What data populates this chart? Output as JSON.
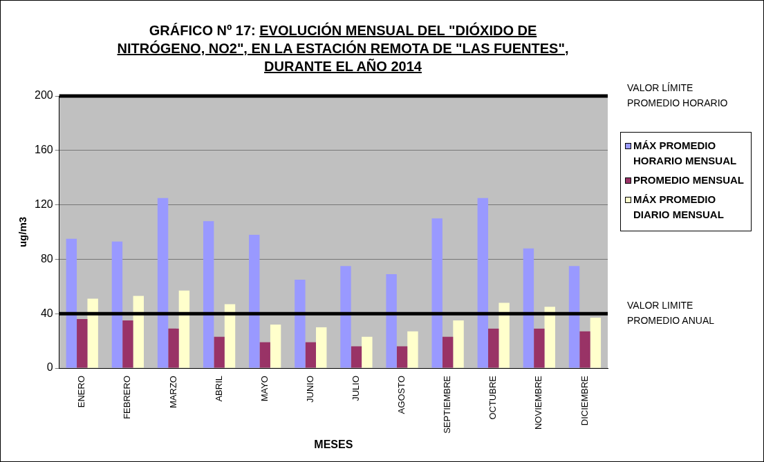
{
  "chart_data": {
    "type": "bar",
    "title": "GRÁFICO Nº 17: EVOLUCIÓN  MENSUAL DEL \"DIÓXIDO DE NITRÓGENO, NO2\", EN LA ESTACIÓN REMOTA DE \"LAS FUENTES\", DURANTE EL AÑO 2014",
    "xlabel": "MESES",
    "ylabel": "ug/m3",
    "categories": [
      "ENERO",
      "FEBRERO",
      "MARZO",
      "ABRIL",
      "MAYO",
      "JUNIO",
      "JULIO",
      "AGOSTO",
      "SEPTIEMBRE",
      "OCTUBRE",
      "NOVIEMBRE",
      "DICIEMBRE"
    ],
    "series": [
      {
        "name": "MÁX PROMEDIO HORARIO MENSUAL",
        "color": "#9999ff",
        "values": [
          95,
          93,
          125,
          108,
          98,
          65,
          75,
          69,
          110,
          125,
          88,
          75
        ]
      },
      {
        "name": "PROMEDIO MENSUAL",
        "color": "#993366",
        "values": [
          36,
          35,
          29,
          23,
          19,
          19,
          16,
          16,
          23,
          29,
          29,
          27
        ]
      },
      {
        "name": "MÁX PROMEDIO DIARIO MENSUAL",
        "color": "#ffffcc",
        "values": [
          51,
          53,
          57,
          47,
          32,
          30,
          23,
          27,
          35,
          48,
          45,
          37
        ]
      }
    ],
    "ylim": [
      0,
      200
    ],
    "yticks": [
      0,
      40,
      80,
      120,
      160,
      200
    ],
    "grid": "y",
    "legend": "right",
    "ref_lines": [
      {
        "axis": "y",
        "value": 200,
        "label": "VALOR LÍMITE PROMEDIO HORARIO",
        "color": "#000000"
      },
      {
        "axis": "y",
        "value": 40,
        "label": "VALOR LIMITE PROMEDIO ANUAL",
        "color": "#000000"
      }
    ]
  }
}
